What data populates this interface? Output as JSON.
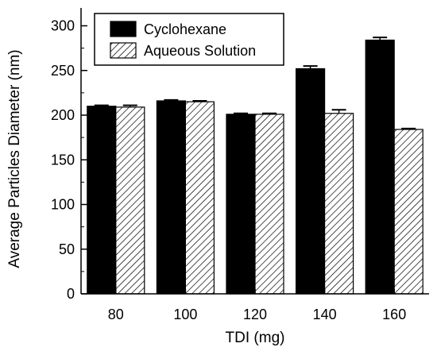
{
  "chart_data": {
    "type": "bar",
    "title": "",
    "xlabel": "TDI (mg)",
    "ylabel": "Average Particles Diameter (nm)",
    "categories": [
      "80",
      "100",
      "120",
      "140",
      "160"
    ],
    "ylim": [
      0,
      320
    ],
    "yticks": [
      0,
      50,
      100,
      150,
      200,
      250,
      300
    ],
    "grid": false,
    "legend_position": "top-left",
    "series": [
      {
        "name": "Cyclohexane",
        "style": "solid",
        "color": "#000000",
        "values": [
          210,
          216,
          201,
          252,
          284
        ],
        "errors": [
          1,
          1,
          1,
          3,
          3
        ]
      },
      {
        "name": "Aqueous Solution",
        "style": "hatched",
        "color": "#000000",
        "values": [
          209,
          215,
          201,
          202,
          184
        ],
        "errors": [
          2,
          1,
          1,
          4,
          1
        ]
      }
    ]
  }
}
